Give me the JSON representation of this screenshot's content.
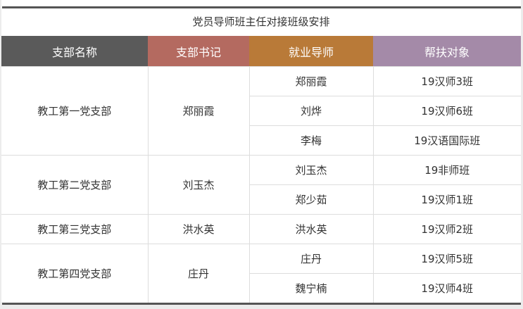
{
  "title": "党员导师班主任对接班级安排",
  "headers": [
    {
      "label": "支部名称",
      "color": "#5a5a5a"
    },
    {
      "label": "支部书记",
      "color": "#b46a60"
    },
    {
      "label": "就业导师",
      "color": "#b97a38"
    },
    {
      "label": "帮扶对象",
      "color": "#a48aa8"
    }
  ],
  "groups": [
    {
      "branch": "教工第一党支部",
      "secretary": "郑丽霞",
      "rows": [
        {
          "mentor": "郑丽霞",
          "target": "19汉师3班"
        },
        {
          "mentor": "刘烨",
          "target": "19汉师6班"
        },
        {
          "mentor": "李梅",
          "target": "19汉语国际班"
        }
      ]
    },
    {
      "branch": "教工第二党支部",
      "secretary": "刘玉杰",
      "rows": [
        {
          "mentor": "刘玉杰",
          "target": "19非师班"
        },
        {
          "mentor": "郑少茹",
          "target": "19汉师1班"
        }
      ]
    },
    {
      "branch": "教工第三党支部",
      "secretary": "洪水英",
      "rows": [
        {
          "mentor": "洪水英",
          "target": "19汉师2班"
        }
      ]
    },
    {
      "branch": "教工第四党支部",
      "secretary": "庄丹",
      "rows": [
        {
          "mentor": "庄丹",
          "target": "19汉师5班"
        },
        {
          "mentor": "魏宁楠",
          "target": "19汉师4班"
        }
      ]
    }
  ]
}
